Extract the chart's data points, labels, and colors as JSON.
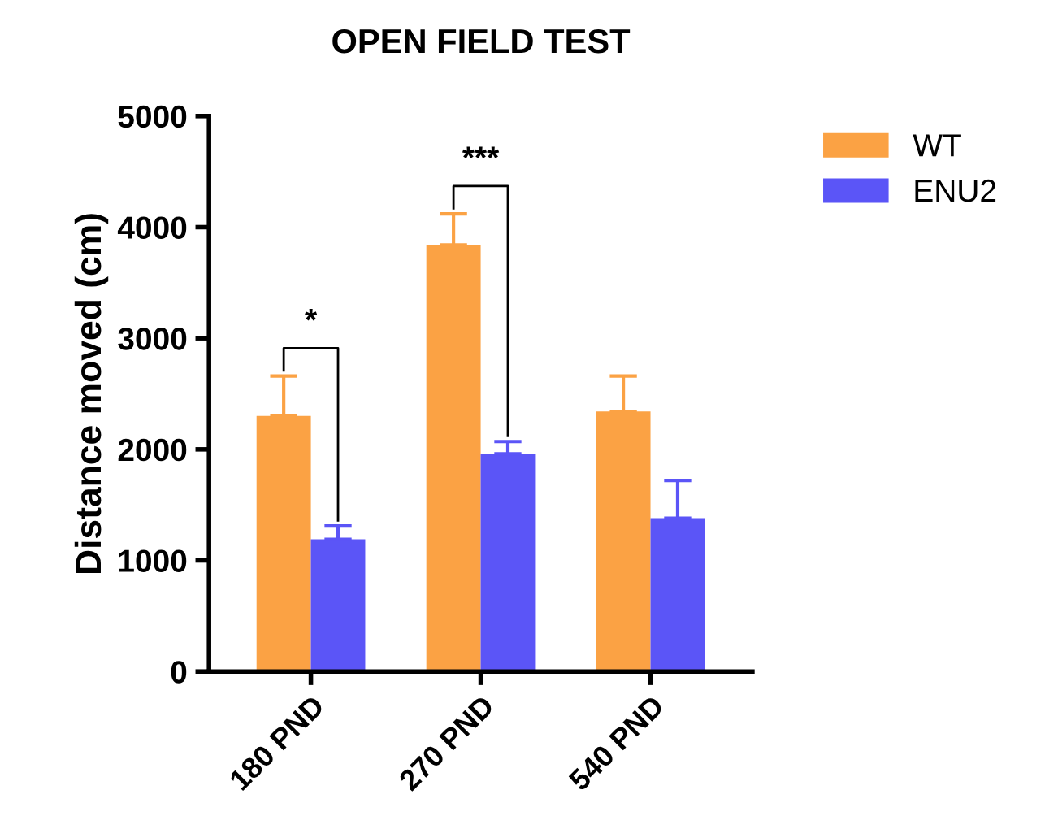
{
  "chart_data": {
    "type": "bar",
    "title": "OPEN FIELD TEST",
    "ylabel": "Distance moved (cm)",
    "categories": [
      "180 PND",
      "270 PND",
      "540 PND"
    ],
    "series": [
      {
        "name": "WT",
        "color": "#fba244",
        "values": [
          2300,
          3840,
          2340
        ],
        "errors": [
          [
            2300,
            2660
          ],
          [
            3840,
            4120
          ],
          [
            2340,
            2660
          ]
        ]
      },
      {
        "name": "ENU2",
        "color": "#5b55f7",
        "values": [
          1190,
          1960,
          1380
        ],
        "errors": [
          [
            1190,
            1310
          ],
          [
            1960,
            2070
          ],
          [
            1380,
            1720
          ]
        ]
      }
    ],
    "annotations": [
      "*",
      "***"
    ],
    "ylim": [
      0,
      5000
    ],
    "yticks": [
      0,
      1000,
      2000,
      3000,
      4000,
      5000
    ],
    "grid": false,
    "legend": "top right"
  }
}
